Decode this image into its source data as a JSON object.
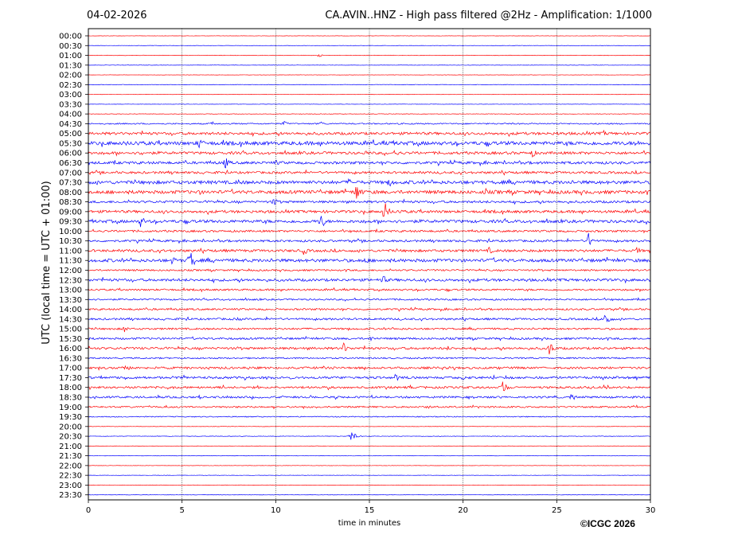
{
  "header": {
    "date": "04-02-2026",
    "title": "CA.AVIN..HNZ - High pass filtered @2Hz - Amplification: 1/1000"
  },
  "footer": {
    "copyright": "©ICGC 2026"
  },
  "chart_data": {
    "type": "line",
    "title": "CA.AVIN..HNZ - High pass filtered @2Hz - Amplification: 1/1000",
    "xlabel": "time in minutes",
    "ylabel": "UTC (local time = UTC + 01:00)",
    "xlim": [
      0,
      30
    ],
    "xticks": [
      0,
      5,
      10,
      15,
      20,
      25,
      30
    ],
    "grid": "vertical dotted at each x tick",
    "row_labels": [
      "00:00",
      "00:30",
      "01:00",
      "01:30",
      "02:00",
      "02:30",
      "03:00",
      "03:30",
      "04:00",
      "04:30",
      "05:00",
      "05:30",
      "06:00",
      "06:30",
      "07:00",
      "07:30",
      "08:00",
      "08:30",
      "09:00",
      "09:30",
      "10:00",
      "10:30",
      "11:00",
      "11:30",
      "12:00",
      "12:30",
      "13:00",
      "13:30",
      "14:00",
      "14:30",
      "15:00",
      "15:30",
      "16:00",
      "16:30",
      "17:00",
      "17:30",
      "18:00",
      "18:30",
      "19:00",
      "19:30",
      "20:00",
      "20:30",
      "21:00",
      "21:30",
      "22:00",
      "22:30",
      "23:00",
      "23:30"
    ],
    "colors": {
      "even_rows": "#ff0000",
      "odd_rows": "#0000ff"
    },
    "noise_level": [
      0.2,
      0.2,
      0.3,
      0.2,
      0.2,
      0.3,
      0.2,
      0.2,
      0.3,
      0.8,
      1.6,
      2.2,
      1.6,
      1.6,
      1.4,
      2.0,
      2.0,
      1.4,
      1.6,
      1.8,
      1.2,
      1.3,
      1.5,
      1.9,
      1.0,
      1.6,
      1.1,
      1.0,
      1.1,
      1.2,
      1.1,
      1.2,
      1.4,
      0.9,
      1.3,
      1.4,
      1.3,
      1.2,
      1.0,
      0.6,
      0.2,
      0.3,
      0.2,
      0.2,
      0.2,
      0.2,
      0.2,
      0.2
    ],
    "events": [
      {
        "row": 2,
        "t": 12.3,
        "amp": 2
      },
      {
        "row": 9,
        "t": 6.6,
        "amp": 3
      },
      {
        "row": 9,
        "t": 10.4,
        "amp": 4
      },
      {
        "row": 9,
        "t": 12.4,
        "amp": 3
      },
      {
        "row": 10,
        "t": 25.0,
        "amp": 3
      },
      {
        "row": 10,
        "t": 27.5,
        "amp": 4
      },
      {
        "row": 11,
        "t": 5.9,
        "amp": 8
      },
      {
        "row": 11,
        "t": 29.2,
        "amp": 6
      },
      {
        "row": 12,
        "t": 2.8,
        "amp": 4
      },
      {
        "row": 12,
        "t": 14.8,
        "amp": 4
      },
      {
        "row": 12,
        "t": 16.5,
        "amp": 4
      },
      {
        "row": 12,
        "t": 23.7,
        "amp": 6
      },
      {
        "row": 13,
        "t": 7.3,
        "amp": 8
      },
      {
        "row": 13,
        "t": 10.0,
        "amp": 4
      },
      {
        "row": 15,
        "t": 8.0,
        "amp": 5
      },
      {
        "row": 15,
        "t": 13.9,
        "amp": 5
      },
      {
        "row": 15,
        "t": 16.1,
        "amp": 6
      },
      {
        "row": 16,
        "t": 5.9,
        "amp": 4
      },
      {
        "row": 16,
        "t": 14.3,
        "amp": 13
      },
      {
        "row": 16,
        "t": 21.2,
        "amp": 5
      },
      {
        "row": 17,
        "t": 9.9,
        "amp": 6
      },
      {
        "row": 18,
        "t": 15.8,
        "amp": 14
      },
      {
        "row": 18,
        "t": 16.6,
        "amp": 4
      },
      {
        "row": 19,
        "t": 2.8,
        "amp": 8
      },
      {
        "row": 19,
        "t": 12.4,
        "amp": 11
      },
      {
        "row": 21,
        "t": 26.7,
        "amp": 10
      },
      {
        "row": 22,
        "t": 11.5,
        "amp": 6
      },
      {
        "row": 22,
        "t": 21.4,
        "amp": 5
      },
      {
        "row": 22,
        "t": 29.3,
        "amp": 5
      },
      {
        "row": 23,
        "t": 4.5,
        "amp": 6
      },
      {
        "row": 23,
        "t": 5.4,
        "amp": 16
      },
      {
        "row": 23,
        "t": 14.8,
        "amp": 5
      },
      {
        "row": 23,
        "t": 21.5,
        "amp": 4
      },
      {
        "row": 25,
        "t": 15.7,
        "amp": 7
      },
      {
        "row": 29,
        "t": 8.0,
        "amp": 3
      },
      {
        "row": 29,
        "t": 27.6,
        "amp": 11
      },
      {
        "row": 30,
        "t": 1.9,
        "amp": 5
      },
      {
        "row": 31,
        "t": 15.1,
        "amp": 4
      },
      {
        "row": 32,
        "t": 13.6,
        "amp": 8
      },
      {
        "row": 32,
        "t": 24.6,
        "amp": 10
      },
      {
        "row": 32,
        "t": 19.2,
        "amp": 3
      },
      {
        "row": 34,
        "t": 1.9,
        "amp": 8
      },
      {
        "row": 35,
        "t": 16.4,
        "amp": 5
      },
      {
        "row": 35,
        "t": 20.0,
        "amp": 5
      },
      {
        "row": 36,
        "t": 22.1,
        "amp": 9
      },
      {
        "row": 37,
        "t": 25.8,
        "amp": 5
      },
      {
        "row": 38,
        "t": 18.1,
        "amp": 3
      },
      {
        "row": 41,
        "t": 14.0,
        "amp": 8
      }
    ]
  }
}
